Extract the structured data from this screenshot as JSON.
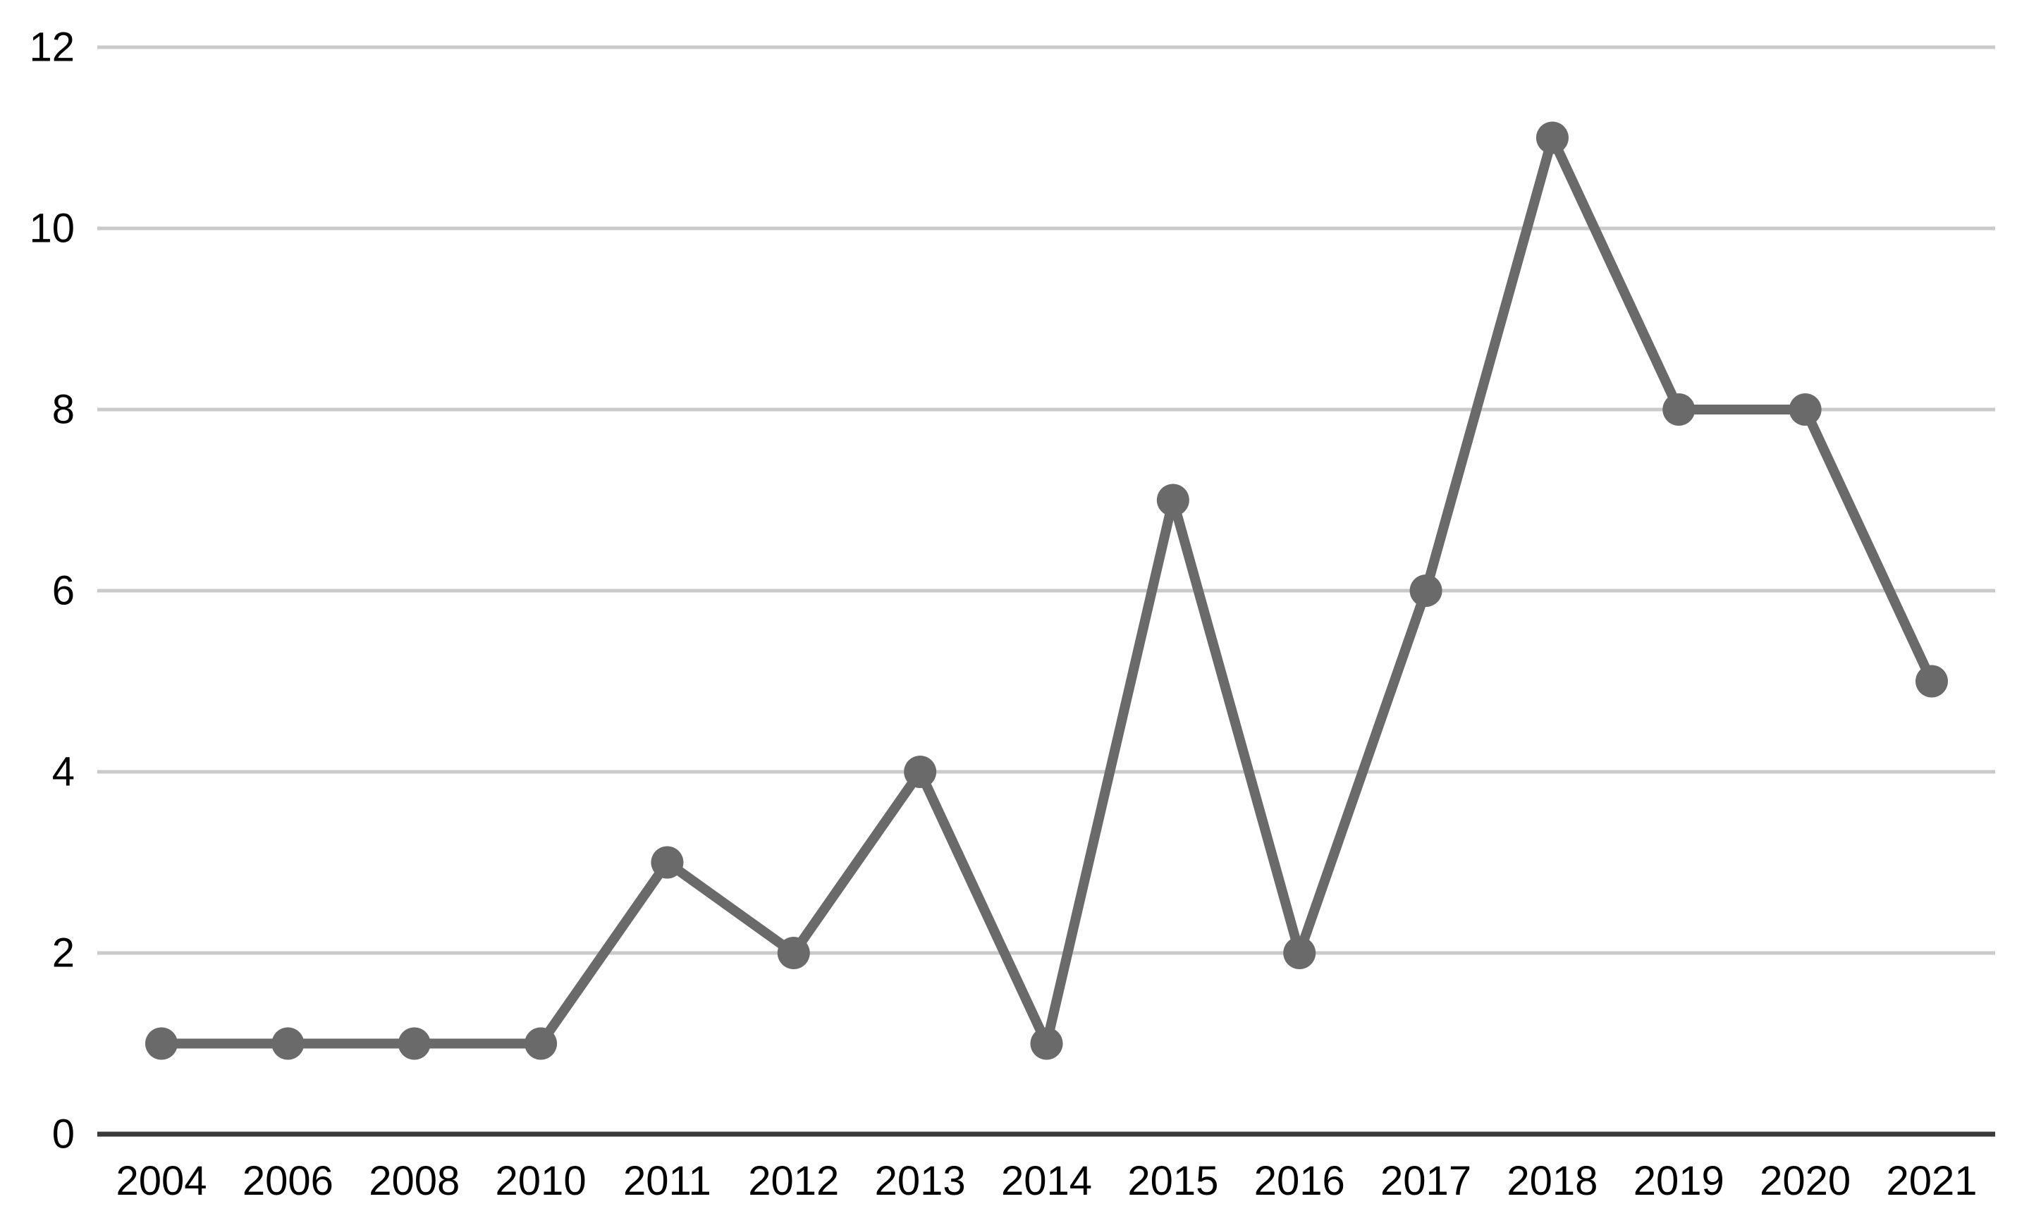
{
  "chart_data": {
    "type": "line",
    "title": "",
    "xlabel": "",
    "ylabel": "",
    "categories": [
      "2004",
      "2006",
      "2008",
      "2010",
      "2011",
      "2012",
      "2013",
      "2014",
      "2015",
      "2016",
      "2017",
      "2018",
      "2019",
      "2020",
      "2021"
    ],
    "values": [
      1,
      1,
      1,
      1,
      3,
      2,
      4,
      1,
      7,
      2,
      6,
      11,
      8,
      8,
      5
    ],
    "ylim": [
      0,
      12
    ],
    "yticks": [
      0,
      2,
      4,
      6,
      8,
      10,
      12
    ],
    "grid": "horizontal",
    "legend": "none",
    "marker": "circle",
    "colors": {
      "line": "#6a6a6a",
      "marker": "#6a6a6a",
      "gridline": "#cacaca",
      "axis": "#3a3a3a",
      "tick_text": "#000000",
      "background": "#ffffff"
    }
  }
}
